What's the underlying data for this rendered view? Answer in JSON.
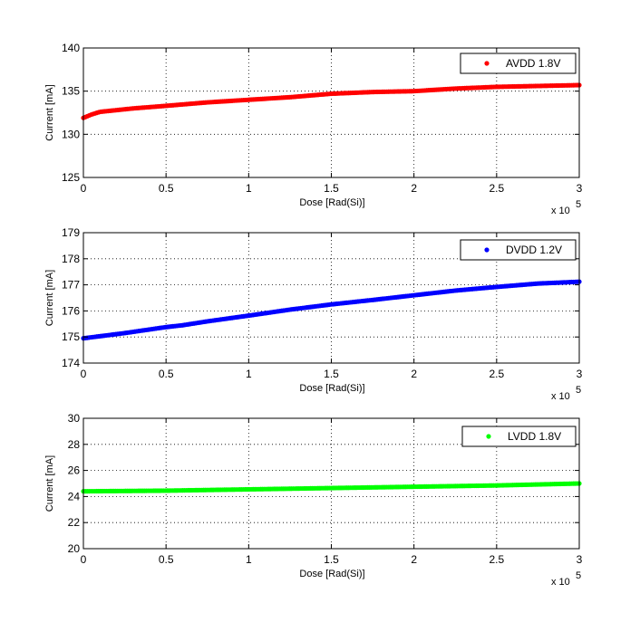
{
  "chart_data": [
    {
      "type": "scatter",
      "xlabel": "Dose [Rad(Si)]",
      "ylabel": "Current [mA]",
      "x_multiplier_label": "x 10",
      "x_multiplier_exponent": "5",
      "xlim": [
        0,
        3
      ],
      "ylim": [
        125,
        140
      ],
      "xticks": [
        "0",
        "0.5",
        "1",
        "1.5",
        "2",
        "2.5",
        "3"
      ],
      "yticks": [
        "125",
        "130",
        "135",
        "140"
      ],
      "grid": true,
      "legend_position": "top-right",
      "series": [
        {
          "name": "AVDD 1.8V",
          "color": "#ff0000",
          "x": [
            0,
            0.05,
            0.1,
            0.2,
            0.3,
            0.5,
            0.75,
            1.0,
            1.25,
            1.5,
            1.75,
            2.0,
            2.25,
            2.5,
            2.75,
            3.0
          ],
          "y": [
            131.9,
            132.3,
            132.6,
            132.8,
            133.0,
            133.3,
            133.7,
            134.0,
            134.3,
            134.7,
            134.9,
            135.0,
            135.3,
            135.5,
            135.6,
            135.7
          ]
        }
      ]
    },
    {
      "type": "scatter",
      "xlabel": "Dose [Rad(Si)]",
      "ylabel": "Current [mA]",
      "x_multiplier_label": "x 10",
      "x_multiplier_exponent": "5",
      "xlim": [
        0,
        3
      ],
      "ylim": [
        174,
        179
      ],
      "xticks": [
        "0",
        "0.5",
        "1",
        "1.5",
        "2",
        "2.5",
        "3"
      ],
      "yticks": [
        "174",
        "175",
        "176",
        "177",
        "178",
        "179"
      ],
      "grid": true,
      "legend_position": "top-right",
      "series": [
        {
          "name": "DVDD 1.2V",
          "color": "#0000ff",
          "x": [
            0,
            0.25,
            0.5,
            0.6,
            0.75,
            1.0,
            1.25,
            1.5,
            1.75,
            2.0,
            2.25,
            2.5,
            2.75,
            3.0
          ],
          "y": [
            174.95,
            175.15,
            175.38,
            175.45,
            175.6,
            175.82,
            176.05,
            176.25,
            176.42,
            176.6,
            176.78,
            176.92,
            177.05,
            177.12
          ]
        }
      ]
    },
    {
      "type": "scatter",
      "xlabel": "Dose [Rad(Si)]",
      "ylabel": "Current [mA]",
      "x_multiplier_label": "x 10",
      "x_multiplier_exponent": "5",
      "xlim": [
        0,
        3
      ],
      "ylim": [
        20,
        30
      ],
      "xticks": [
        "0",
        "0.5",
        "1",
        "1.5",
        "2",
        "2.5",
        "3"
      ],
      "yticks": [
        "20",
        "22",
        "24",
        "26",
        "28",
        "30"
      ],
      "grid": true,
      "legend_position": "top-right",
      "series": [
        {
          "name": "LVDD 1.8V",
          "color": "#00ff00",
          "x": [
            0,
            0.5,
            1.0,
            1.5,
            2.0,
            2.5,
            3.0
          ],
          "y": [
            24.4,
            24.45,
            24.55,
            24.65,
            24.75,
            24.85,
            25.0
          ]
        }
      ]
    }
  ]
}
